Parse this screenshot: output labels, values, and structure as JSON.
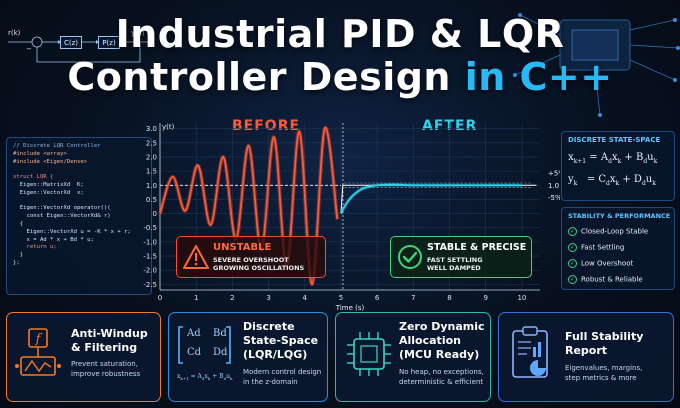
{
  "title": {
    "line1": "Industrial PID & LQR",
    "line2_main": "Controller Design ",
    "line2_accent": "in C++"
  },
  "block_diagram": {
    "input": "r(k)",
    "controller": "C(z)",
    "plant": "P(z)",
    "output": "y(k)",
    "sum_sign": "−"
  },
  "code": {
    "lines": [
      "// Discrete LQR Controller",
      "#include <array>",
      "#include <Eigen/Dense>",
      "",
      "struct LQR {",
      "  Eigen::MatrixXd  K;",
      "  Eigen::VectorXd  x;",
      "",
      "  Eigen::VectorXd operator()(",
      "    const Eigen::VectorXd& r)",
      "  {",
      "    Eigen::VectorXd u = -K * x + r;",
      "    x = Ad * x + Bd * u;",
      "    return u;",
      "  }",
      "};"
    ]
  },
  "chart_data": {
    "type": "line",
    "before_label": "BEFORE",
    "after_label": "AFTER",
    "ylabel": "y(t)",
    "xlabel": "Time (s)",
    "x_ticks": [
      "0",
      "1",
      "2",
      "3",
      "4",
      "5",
      "6",
      "7",
      "8",
      "9",
      "10"
    ],
    "y_ticks": [
      "3.0",
      "2.5",
      "2.0",
      "1.5",
      "1.0",
      "0.5",
      "0",
      "-0.5",
      "-1.0",
      "-1.5",
      "-2.0",
      "-2.5"
    ],
    "ylim": [
      -2.7,
      3.2
    ],
    "xlim": [
      0,
      10.5
    ],
    "split_x": 5,
    "tolerance_labels": [
      "+5%",
      "1.0",
      "-5%"
    ],
    "colors": {
      "before": "#ff5a36",
      "after": "#2fd2e6",
      "reference": "#ffffff"
    },
    "before_series": {
      "x": [
        0,
        0.35,
        0.7,
        1.05,
        1.4,
        1.75,
        2.1,
        2.45,
        2.8,
        3.15,
        3.5,
        3.85,
        4.2,
        4.55,
        4.9
      ],
      "y": [
        0,
        1.3,
        0.1,
        1.7,
        -0.4,
        2.0,
        -0.9,
        2.4,
        -1.3,
        2.7,
        -1.9,
        2.9,
        -2.5,
        3.0,
        -0.2
      ]
    },
    "after_series": {
      "x": [
        5,
        5.1,
        5.3,
        5.6,
        6.0,
        6.5,
        7,
        8,
        9,
        10
      ],
      "y": [
        0,
        0.25,
        0.6,
        0.88,
        1.0,
        1.02,
        1.0,
        1.0,
        1.0,
        1.0
      ]
    },
    "reference": 1.0
  },
  "unstable_box": {
    "title": "UNSTABLE",
    "line1": "SEVERE OVERSHOOT",
    "line2": "GROWING OSCILLATIONS",
    "color": "#ff4a2a"
  },
  "stable_box": {
    "title": "STABLE & PRECISE",
    "line1": "FAST SETTLING",
    "line2": "WELL DAMPED",
    "color": "#3fd47a"
  },
  "state_space": {
    "title": "DISCRETE STATE-SPACE"
  },
  "stability": {
    "title": "STABILITY & PERFORMANCE",
    "items": [
      "Closed-Loop Stable",
      "Fast Settling",
      "Low Overshoot",
      "Robust & Reliable"
    ]
  },
  "cards": [
    {
      "title1": "Anti-Windup",
      "title2": "& Filtering",
      "sub1": "Prevent saturation,",
      "sub2": "improve robustness",
      "border": "#f07a2a",
      "icon": "f-function-icon"
    },
    {
      "title1": "Discrete",
      "title2": "State-Space",
      "title3": "(LQR/LQG)",
      "sub1": "Modern control design",
      "sub2": "in the z-domain",
      "border": "#2f8de0",
      "icon": "matrix-icon",
      "matrix": [
        "Ad",
        "Bd",
        "Cd",
        "Dd"
      ]
    },
    {
      "title1": "Zero Dynamic",
      "title2": "Allocation",
      "title3": "(MCU Ready)",
      "sub1": "No heap, no exceptions,",
      "sub2": "deterministic & efficient",
      "border": "#2fb8a8",
      "icon": "chip-icon"
    },
    {
      "title1": "Full Stability",
      "title2": "Report",
      "sub1": "Eigenvalues, margins,",
      "sub2": "step metrics & more",
      "border": "#3a6fd8",
      "icon": "report-icon"
    }
  ]
}
